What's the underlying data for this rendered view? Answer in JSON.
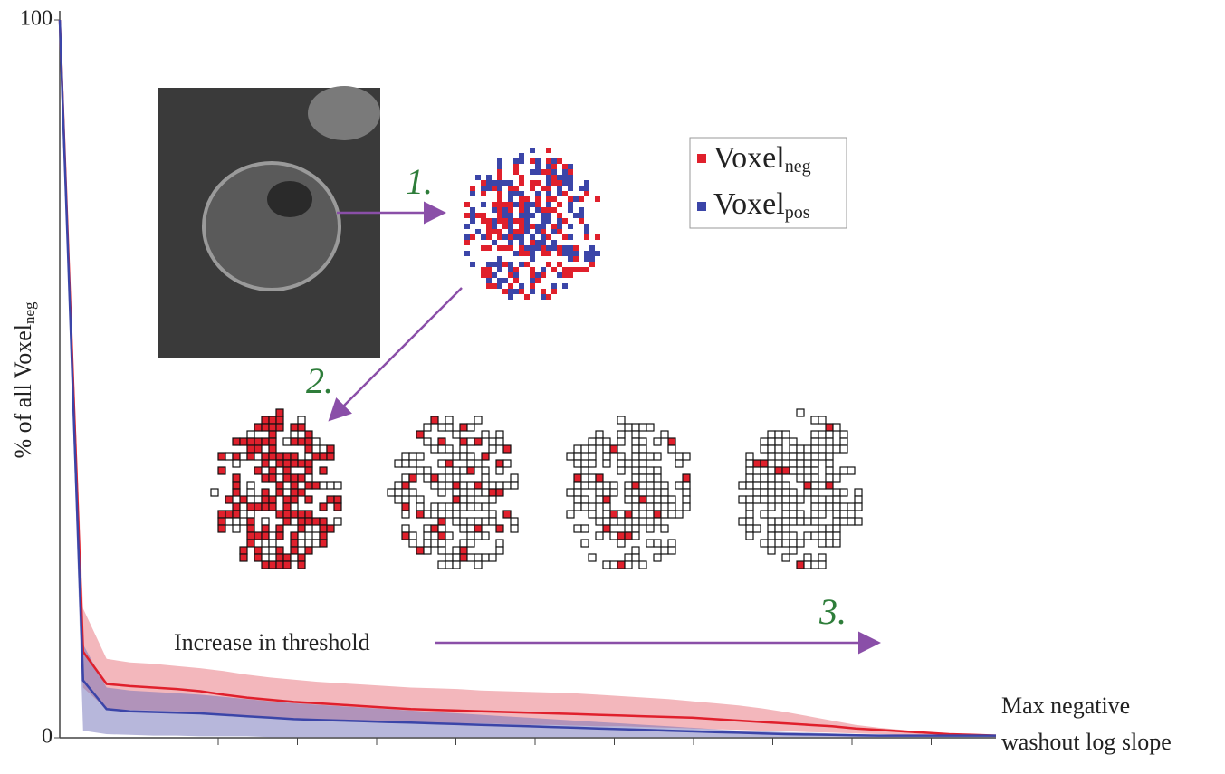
{
  "chart_data": {
    "type": "line",
    "ylabel": "% of all Voxel",
    "ylabel_sub": "neg",
    "xlabel": [
      "Max negative",
      "washout log slope"
    ],
    "ylim": [
      0,
      100
    ],
    "yticks": [
      0,
      100
    ],
    "categories": [
      null,
      null,
      null,
      null,
      null,
      null,
      null,
      null,
      null,
      null,
      null,
      null,
      null,
      null,
      null,
      null,
      null,
      null,
      null,
      null,
      null,
      null,
      null,
      null,
      null,
      null,
      null,
      null,
      null,
      null,
      null,
      null,
      null,
      null,
      null,
      null,
      null,
      null,
      null,
      null,
      null
    ],
    "series": [
      {
        "name": "Voxel",
        "subscript": "neg",
        "color": "#e0202c",
        "band_color": "#e8707a",
        "values": [
          100,
          12,
          7.5,
          7.2,
          7,
          6.8,
          6.5,
          6,
          5.6,
          5.3,
          5,
          4.8,
          4.6,
          4.4,
          4.2,
          4,
          3.9,
          3.8,
          3.7,
          3.6,
          3.5,
          3.4,
          3.3,
          3.2,
          3.1,
          3,
          2.9,
          2.8,
          2.6,
          2.4,
          2.2,
          2,
          1.8,
          1.6,
          1.3,
          1.1,
          0.9,
          0.7,
          0.5,
          0.4,
          0.3
        ],
        "upper": [
          100,
          18,
          11,
          10.5,
          10.3,
          10,
          9.7,
          9.3,
          8.8,
          8.4,
          8.1,
          7.8,
          7.6,
          7.4,
          7.2,
          7,
          6.9,
          6.8,
          6.6,
          6.5,
          6.4,
          6.3,
          6.2,
          6,
          5.8,
          5.6,
          5.4,
          5.1,
          4.8,
          4.5,
          4.1,
          3.6,
          3,
          2.4,
          1.8,
          1.4,
          1.1,
          0.8,
          0.6,
          0.4,
          0.3
        ],
        "lower": [
          100,
          7,
          4,
          3.9,
          3.8,
          3.7,
          3.5,
          3.2,
          3,
          2.9,
          2.7,
          2.6,
          2.5,
          2.4,
          2.3,
          2.2,
          2.1,
          2,
          2,
          1.9,
          1.8,
          1.8,
          1.7,
          1.6,
          1.6,
          1.5,
          1.4,
          1.3,
          1.2,
          1.1,
          1,
          0.9,
          0.8,
          0.7,
          0.6,
          0.5,
          0.4,
          0.3,
          0.3,
          0.3,
          0.3
        ]
      },
      {
        "name": "Voxel",
        "subscript": "pos",
        "color": "#3b45a8",
        "band_color": "#7070b8",
        "values": [
          100,
          8,
          4,
          3.7,
          3.6,
          3.5,
          3.4,
          3.2,
          3,
          2.8,
          2.6,
          2.5,
          2.4,
          2.3,
          2.2,
          2.1,
          2,
          1.9,
          1.8,
          1.7,
          1.6,
          1.5,
          1.4,
          1.3,
          1.2,
          1.1,
          1,
          0.9,
          0.8,
          0.7,
          0.6,
          0.5,
          0.45,
          0.4,
          0.35,
          0.3,
          0.3,
          0.3,
          0.3,
          0.3,
          0.3
        ],
        "upper": [
          100,
          13,
          7,
          6.6,
          6.4,
          6.2,
          6,
          5.7,
          5.4,
          5.1,
          4.8,
          4.6,
          4.4,
          4.2,
          4,
          3.8,
          3.6,
          3.4,
          3.2,
          3,
          2.8,
          2.6,
          2.4,
          2.2,
          2,
          1.8,
          1.6,
          1.4,
          1.2,
          1,
          0.9,
          0.8,
          0.7,
          0.6,
          0.5,
          0.4,
          0.4,
          0.4,
          0.3,
          0.3,
          0.3
        ],
        "lower": [
          100,
          1,
          0.5,
          0.4,
          0.3,
          0.3,
          0.2,
          0.2,
          0.2,
          0.1,
          0.1,
          0.1,
          0.1,
          0.1,
          0.1,
          0.1,
          0.1,
          0.1,
          0.1,
          0.1,
          0.1,
          0.1,
          0.1,
          0.1,
          0.1,
          0.1,
          0.1,
          0.1,
          0.1,
          0.1,
          0.1,
          0.1,
          0.1,
          0.1,
          0.1,
          0.1,
          0.1,
          0.1,
          0.1,
          0.1,
          0.1
        ]
      }
    ],
    "annotations": [
      "1.",
      "2.",
      "3.",
      "Increase in threshold"
    ]
  }
}
